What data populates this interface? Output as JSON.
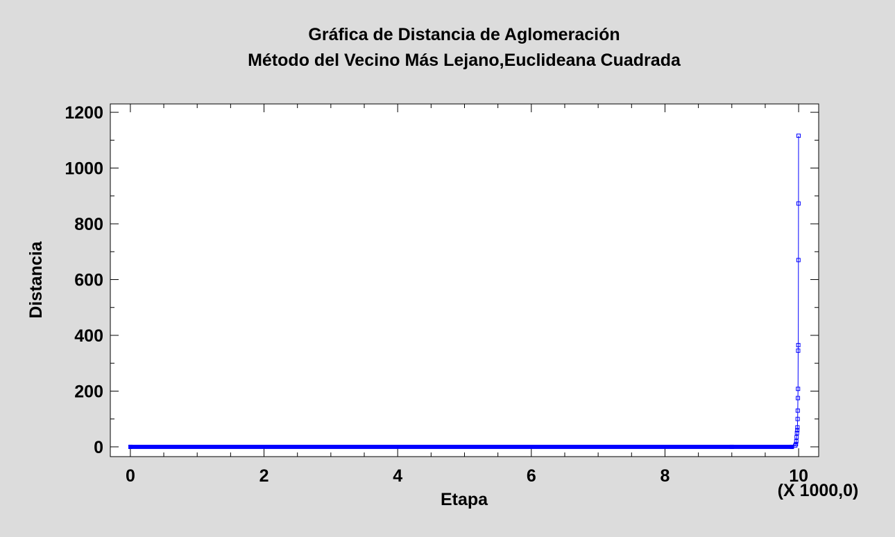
{
  "chart_data": {
    "type": "line",
    "title": "Gráfica de Distancia de Aglomeración",
    "subtitle": "Método del Vecino Más Lejano,Euclideana Cuadrada",
    "xlabel": "Etapa",
    "ylabel": "Distancia",
    "x_multiplier_label": "(X 1000,0)",
    "xlim": [
      -0.3,
      10.3
    ],
    "ylim": [
      -35,
      1230
    ],
    "xticks": [
      "0",
      "2",
      "4",
      "6",
      "8",
      "10"
    ],
    "yticks": [
      "0",
      "200",
      "400",
      "600",
      "800",
      "1000",
      "1200"
    ],
    "grid": false,
    "legend": "none",
    "series": [
      {
        "color": "#0000ff",
        "marker": "square",
        "points": [
          {
            "x": 0.0,
            "y": 0
          },
          {
            "x": 9.0,
            "y": 0
          },
          {
            "x": 9.9,
            "y": 0
          },
          {
            "x": 9.95,
            "y": 5
          },
          {
            "x": 9.96,
            "y": 10
          },
          {
            "x": 9.965,
            "y": 20
          },
          {
            "x": 9.97,
            "y": 35
          },
          {
            "x": 9.975,
            "y": 50
          },
          {
            "x": 9.98,
            "y": 60
          },
          {
            "x": 9.982,
            "y": 70
          },
          {
            "x": 9.985,
            "y": 100
          },
          {
            "x": 9.987,
            "y": 130
          },
          {
            "x": 9.989,
            "y": 175
          },
          {
            "x": 9.991,
            "y": 208
          },
          {
            "x": 9.993,
            "y": 345
          },
          {
            "x": 9.995,
            "y": 365
          },
          {
            "x": 9.997,
            "y": 670
          },
          {
            "x": 9.998,
            "y": 873
          },
          {
            "x": 9.999,
            "y": 1116
          }
        ]
      }
    ]
  }
}
